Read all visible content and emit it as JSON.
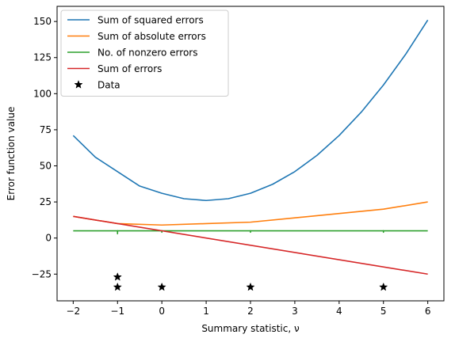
{
  "chart_data": {
    "type": "line",
    "title": "",
    "xlabel": "Summary statistic, ν",
    "ylabel": "Error function value",
    "xlim": [
      -2.364,
      6.364
    ],
    "ylim": [
      -43.5,
      160.5
    ],
    "grid": false,
    "legend_position": "top-left",
    "x_ticks": [
      -2,
      -1,
      0,
      1,
      2,
      3,
      4,
      5,
      6
    ],
    "x_tick_labels": [
      "−2",
      "−1",
      "0",
      "1",
      "2",
      "3",
      "4",
      "5",
      "6"
    ],
    "y_ticks": [
      -25,
      0,
      25,
      50,
      75,
      100,
      125,
      150
    ],
    "y_tick_labels": [
      "−25",
      "0",
      "25",
      "50",
      "75",
      "100",
      "125",
      "150"
    ],
    "series": [
      {
        "name": "Sum of squared errors",
        "kind": "line",
        "color": "#1f77b4",
        "x": [
          -2,
          -1.5,
          -1,
          -0.5,
          0,
          0.5,
          1,
          1.5,
          2,
          2.5,
          3,
          3.5,
          4,
          4.5,
          5,
          5.5,
          6
        ],
        "y": [
          71,
          56,
          46,
          36,
          31,
          27.25,
          26,
          27.25,
          31,
          37.25,
          46,
          57.25,
          71,
          87.25,
          106,
          127.25,
          151
        ]
      },
      {
        "name": "Sum of absolute errors",
        "kind": "line",
        "color": "#ff7f0e",
        "x": [
          -2,
          -1,
          0,
          1,
          2,
          3,
          4,
          5,
          6
        ],
        "y": [
          15,
          10,
          9,
          10,
          11,
          14,
          17,
          20,
          25
        ]
      },
      {
        "name": "No. of nonzero errors",
        "kind": "line",
        "color": "#2ca02c",
        "x": [
          -2,
          -1.001,
          -1,
          -0.999,
          -0.001,
          0,
          0.001,
          1.999,
          2,
          2.001,
          4.999,
          5,
          5.001,
          6
        ],
        "y": [
          5,
          5,
          3,
          5,
          5,
          4,
          5,
          5,
          4,
          5,
          5,
          4,
          5,
          5
        ]
      },
      {
        "name": "Sum of errors",
        "kind": "line",
        "color": "#d62728",
        "x": [
          -2,
          6
        ],
        "y": [
          15,
          -25
        ]
      },
      {
        "name": "Data",
        "kind": "scatter",
        "marker": "star",
        "color": "#000000",
        "x": [
          -1,
          -1,
          0,
          2,
          5
        ],
        "y": [
          -27,
          -34,
          -34,
          -34,
          -34
        ]
      }
    ]
  }
}
